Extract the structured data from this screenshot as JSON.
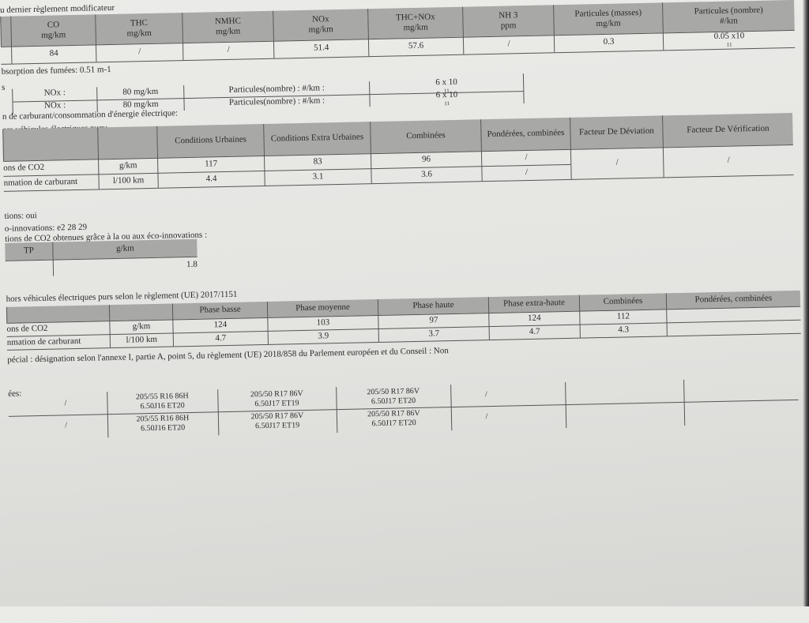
{
  "header_text": "u dernier règlement modificateur",
  "emissions": {
    "headers": [
      [
        "CO",
        "mg/km"
      ],
      [
        "THC",
        "mg/km"
      ],
      [
        "NMHC",
        "mg/km"
      ],
      [
        "NOx",
        "mg/km"
      ],
      [
        "THC+NOx",
        "mg/km"
      ],
      [
        "NH 3",
        "ppm"
      ],
      [
        "Particules (masses)",
        "mg/km"
      ],
      [
        "Particules (nombre)",
        "#/km"
      ]
    ],
    "values": [
      "84",
      "/",
      "/",
      "51.4",
      "57.6",
      "/",
      "0.3",
      "0.05 x10"
    ],
    "exponent": "11"
  },
  "smoke": "bsorption des fumées: 0.51 m-1",
  "limits_label": "s",
  "limits": [
    {
      "label": "NOx :",
      "value": "80 mg/km",
      "p_label": "Particules(nombre) : #/km :",
      "p_value": "6 x 10",
      "exp": "11"
    },
    {
      "label": "NOx :",
      "value": "80 mg/km",
      "p_label": "Particules(nombre) : #/km :",
      "p_value": "6 x 10",
      "exp": "11"
    }
  ],
  "consumption_title": "n de carburant/consommation d'énergie électrique:",
  "consumption_sub": "ors véhicules électriques purs:",
  "consumption": {
    "headers": [
      "Conditions Urbaines",
      "Conditions Extra Urbaines",
      "Combinées",
      "Pondérées, combinées",
      "Facteur De Déviation",
      "Facteur De Vérification"
    ],
    "rows": [
      {
        "label": "ons de CO2",
        "unit": "g/km",
        "values": [
          "117",
          "83",
          "96",
          "/"
        ]
      },
      {
        "label": "nmation de carburant",
        "unit": "l/100 km",
        "values": [
          "4.4",
          "3.1",
          "3.6",
          "/"
        ]
      }
    ],
    "deviation": "/",
    "verification": "/"
  },
  "eco": [
    "tions: oui",
    "o-innovations: e2 28 29",
    "tions de CO2 obtenues grâce à la ou aux éco-innovations :"
  ],
  "eco_table": {
    "h1": "TP",
    "h2": "g/km",
    "value": "1.8"
  },
  "wltp_title": "hors véhicules électriques purs selon le règlement (UE) 2017/1151",
  "wltp": {
    "headers": [
      "Phase basse",
      "Phase moyenne",
      "Phase haute",
      "Phase extra-haute",
      "Combinées",
      "Pondérées, combinées"
    ],
    "rows": [
      {
        "label": "ons de CO2",
        "unit": "g/km",
        "values": [
          "124",
          "103",
          "97",
          "124",
          "112",
          ""
        ]
      },
      {
        "label": "nmation de carburant",
        "unit": "l/100 km",
        "values": [
          "4.7",
          "3.9",
          "3.7",
          "4.7",
          "4.3",
          ""
        ]
      }
    ]
  },
  "special": "pécial : désignation selon l'annexe I, partie A, point 5, du règlement (UE) 2018/858 du Parlement européen et du Conseil : Non",
  "tyres_label": "ées:",
  "tyres": [
    [
      "/",
      "205/55 R16 86H\n6.50J16 ET20",
      "205/50 R17 86V\n6.50J17 ET19",
      "205/50 R17 86V\n6.50J17 ET20",
      "/"
    ],
    [
      "/",
      "205/55 R16 86H\n6.50J16 ET20",
      "205/50 R17 86V\n6.50J17 ET19",
      "205/50 R17 86V\n6.50J17 ET20",
      "/"
    ]
  ]
}
